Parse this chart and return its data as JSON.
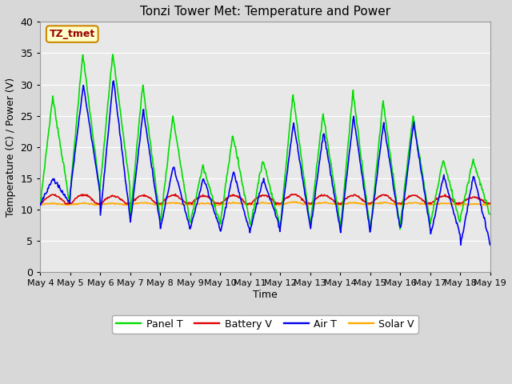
{
  "title": "Tonzi Tower Met: Temperature and Power",
  "xlabel": "Time",
  "ylabel": "Temperature (C) / Power (V)",
  "ylim": [
    0,
    40
  ],
  "yticks": [
    0,
    5,
    10,
    15,
    20,
    25,
    30,
    35,
    40
  ],
  "xtick_labels": [
    "May 4",
    "May 5",
    "May 6",
    "May 7",
    "May 8",
    "May 9",
    "May 10",
    "May 11",
    "May 12",
    "May 13",
    "May 14",
    "May 15",
    "May 16",
    "May 17",
    "May 18",
    "May 19"
  ],
  "annotation_text": "TZ_tmet",
  "annotation_color": "#990000",
  "annotation_bg": "#ffffcc",
  "annotation_border": "#cc8800",
  "colors": {
    "panel_t": "#00dd00",
    "battery_v": "#dd0000",
    "air_t": "#0000ee",
    "solar_v": "#ffaa00"
  },
  "legend_labels": [
    "Panel T",
    "Battery V",
    "Air T",
    "Solar V"
  ],
  "bg_color": "#e8e8e8",
  "grid_color": "#ffffff",
  "linewidth": 1.2,
  "panel_peaks": [
    28,
    35,
    35,
    30,
    25,
    17,
    22,
    18,
    28.5,
    25.5,
    29,
    27.5,
    25,
    18,
    18,
    13
  ],
  "panel_troughs": [
    11,
    13,
    14,
    9,
    8,
    8,
    8,
    7.5,
    8,
    8,
    7,
    7,
    8,
    8,
    9,
    9
  ],
  "air_peaks": [
    15,
    30,
    31,
    26,
    17,
    15,
    16,
    15,
    24,
    22.5,
    25,
    24,
    24,
    15.5,
    15.5,
    12
  ],
  "air_troughs": [
    11,
    13,
    9,
    8,
    7,
    7,
    6.5,
    7,
    7.5,
    7,
    6.5,
    7,
    7,
    6,
    4.5,
    9.5
  ],
  "batt_base": 11.0,
  "batt_bumps": [
    12.3,
    12.4,
    12.2,
    12.3,
    12.3,
    12.2,
    12.3,
    12.3,
    12.4,
    12.3,
    12.3,
    12.3,
    12.3,
    12.2,
    12.0,
    11.3
  ],
  "solar_base": 10.8,
  "solar_bumps": [
    11.0,
    11.0,
    11.0,
    11.1,
    11.1,
    11.0,
    11.1,
    11.1,
    11.2,
    11.1,
    11.1,
    11.1,
    11.1,
    11.0,
    10.9,
    10.7
  ]
}
